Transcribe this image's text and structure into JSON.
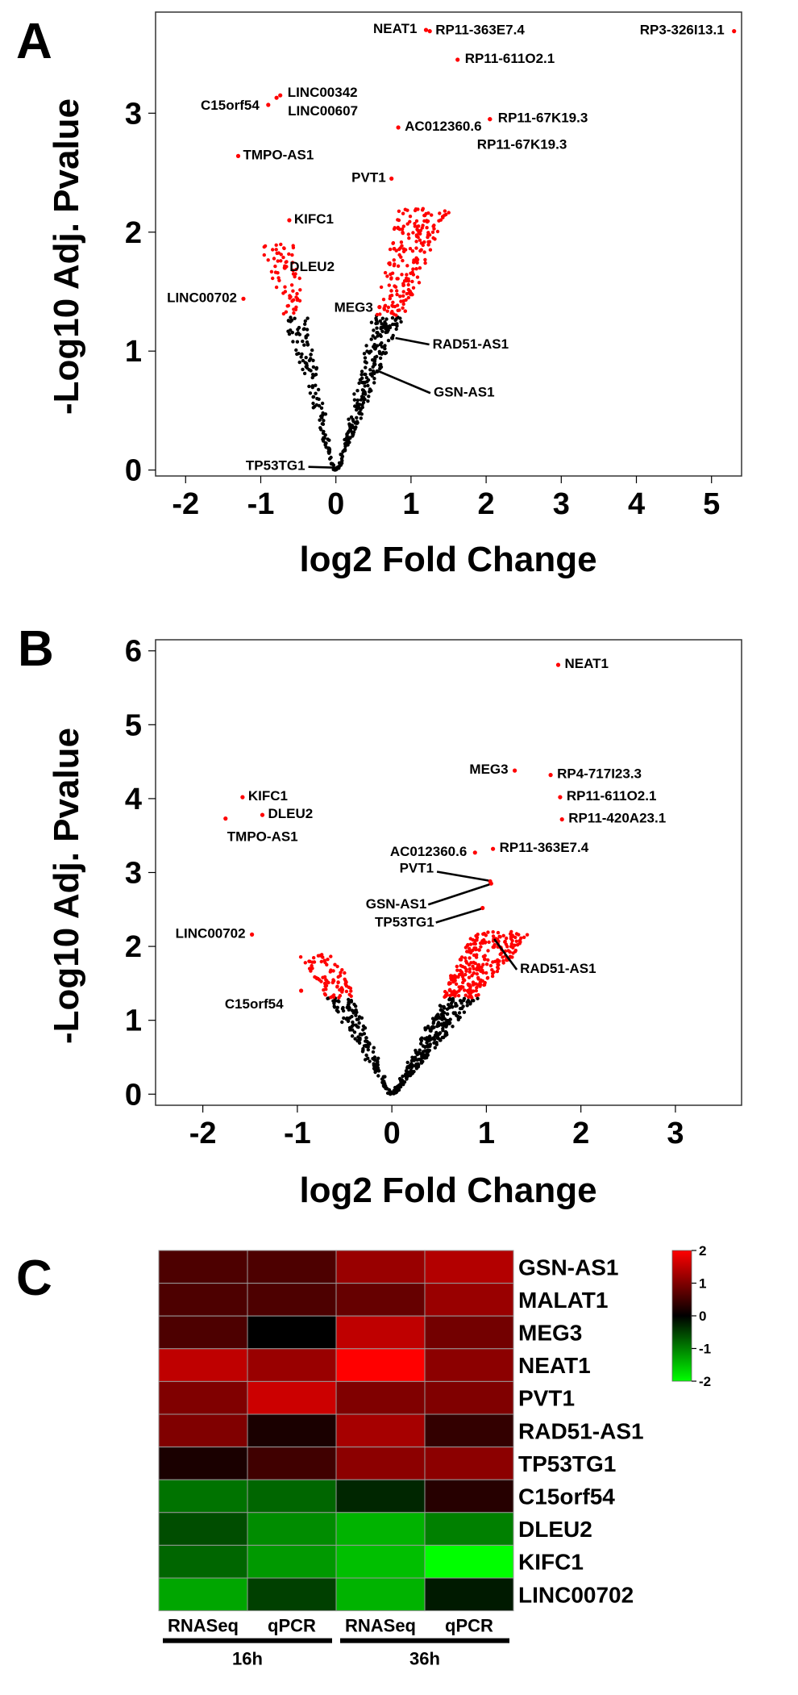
{
  "panels": [
    "A",
    "B",
    "C"
  ],
  "chart_data": [
    {
      "type": "scatter",
      "panel": "A",
      "xlabel": "log2 Fold Change",
      "ylabel": "-Log10 Adj. Pvalue",
      "xlim": [
        -2.4,
        5.4
      ],
      "ylim": [
        -0.05,
        3.85
      ],
      "xticks": [
        -2,
        -1,
        0,
        1,
        2,
        3,
        4,
        5
      ],
      "yticks": [
        0,
        1,
        2,
        3
      ],
      "significance_threshold": 1.3,
      "colors": {
        "significant": "#ff0000",
        "not_significant": "#000000"
      },
      "labeled_points": [
        {
          "label": "NEAT1",
          "x": 1.2,
          "y": 3.7
        },
        {
          "label": "RP11-363E7.4",
          "x": 1.25,
          "y": 3.69
        },
        {
          "label": "RP3-326I13.1",
          "x": 5.3,
          "y": 3.69
        },
        {
          "label": "RP11-611O2.1",
          "x": 1.62,
          "y": 3.45
        },
        {
          "label": "LINC00342",
          "x": -0.74,
          "y": 3.15
        },
        {
          "label": "C15orf54",
          "x": -0.9,
          "y": 3.07
        },
        {
          "label": "LINC00607",
          "x": -0.79,
          "y": 3.13
        },
        {
          "label": "RP11-67K19.3",
          "x": 2.05,
          "y": 2.95
        },
        {
          "label": "AC012360.6",
          "x": 0.83,
          "y": 2.88
        },
        {
          "label": "RP11-67K19.3",
          "x": 2.05,
          "y": 2.95
        },
        {
          "label": "TMPO-AS1",
          "x": -1.3,
          "y": 2.64
        },
        {
          "label": "PVT1",
          "x": 0.74,
          "y": 2.45
        },
        {
          "label": "KIFC1",
          "x": -0.62,
          "y": 2.1
        },
        {
          "label": "DLEU2",
          "x": -0.68,
          "y": 1.7
        },
        {
          "label": "LINC00702",
          "x": -1.23,
          "y": 1.44
        },
        {
          "label": "MEG3",
          "x": 0.58,
          "y": 1.37
        },
        {
          "label": "RAD51-AS1",
          "x": 0.75,
          "y": 1.11
        },
        {
          "label": "GSN-AS1",
          "x": 0.55,
          "y": 0.83
        },
        {
          "label": "TP53TG1",
          "x": 0.02,
          "y": 0.02
        }
      ]
    },
    {
      "type": "scatter",
      "panel": "B",
      "xlabel": "log2 Fold Change",
      "ylabel": "-Log10 Adj. Pvalue",
      "xlim": [
        -2.5,
        3.7
      ],
      "ylim": [
        -0.15,
        6.15
      ],
      "xticks": [
        -2,
        -1,
        0,
        1,
        2,
        3
      ],
      "yticks": [
        0,
        1,
        2,
        3,
        4,
        5,
        6
      ],
      "significance_threshold": 1.3,
      "colors": {
        "significant": "#ff0000",
        "not_significant": "#000000"
      },
      "labeled_points": [
        {
          "label": "NEAT1",
          "x": 1.76,
          "y": 5.81
        },
        {
          "label": "MEG3",
          "x": 1.3,
          "y": 4.38
        },
        {
          "label": "RP4-717I23.3",
          "x": 1.68,
          "y": 4.32
        },
        {
          "label": "RP11-611O2.1",
          "x": 1.78,
          "y": 4.02
        },
        {
          "label": "KIFC1",
          "x": -1.58,
          "y": 4.02
        },
        {
          "label": "DLEU2",
          "x": -1.37,
          "y": 3.78
        },
        {
          "label": "TMPO-AS1",
          "x": -1.76,
          "y": 3.73
        },
        {
          "label": "RP11-420A23.1",
          "x": 1.8,
          "y": 3.72
        },
        {
          "label": "AC012360.6",
          "x": 0.88,
          "y": 3.27
        },
        {
          "label": "RP11-363E7.4",
          "x": 1.07,
          "y": 3.32
        },
        {
          "label": "PVT1",
          "x": 1.04,
          "y": 2.88
        },
        {
          "label": "GSN-AS1",
          "x": 1.05,
          "y": 2.85
        },
        {
          "label": "TP53TG1",
          "x": 0.96,
          "y": 2.52
        },
        {
          "label": "LINC00702",
          "x": -1.48,
          "y": 2.16
        },
        {
          "label": "RAD51-AS1",
          "x": 1.1,
          "y": 2.1
        },
        {
          "label": "C15orf54",
          "x": -0.96,
          "y": 1.4
        }
      ]
    },
    {
      "type": "heatmap",
      "panel": "C",
      "rows": [
        "GSN-AS1",
        "MALAT1",
        "MEG3",
        "NEAT1",
        "PVT1",
        "RAD51-AS1",
        "TP53TG1",
        "C15orf54",
        "DLEU2",
        "KIFC1",
        "LINC00702"
      ],
      "columns": [
        "RNASeq",
        "qPCR",
        "RNASeq",
        "qPCR"
      ],
      "groups": [
        {
          "label": "16h",
          "columns": [
            0,
            1
          ]
        },
        {
          "label": "36h",
          "columns": [
            2,
            3
          ]
        }
      ],
      "values": [
        [
          0.6,
          0.6,
          1.2,
          1.4
        ],
        [
          0.6,
          0.6,
          0.8,
          1.2
        ],
        [
          0.6,
          0.0,
          1.5,
          0.9
        ],
        [
          1.5,
          1.2,
          2.0,
          1.1
        ],
        [
          1.0,
          1.6,
          1.0,
          1.0
        ],
        [
          1.0,
          0.2,
          1.3,
          0.4
        ],
        [
          0.2,
          0.5,
          1.1,
          1.1
        ],
        [
          -0.9,
          -0.8,
          -0.3,
          0.3
        ],
        [
          -0.6,
          -1.1,
          -1.4,
          -1.0
        ],
        [
          -0.8,
          -1.2,
          -1.5,
          -2.0
        ],
        [
          -1.3,
          -0.5,
          -1.4,
          -0.2
        ]
      ],
      "color_scale": {
        "min": -2,
        "max": 2,
        "ticks": [
          2,
          1,
          0,
          -1,
          -2
        ],
        "low_color": "#00ff00",
        "mid_color": "#000000",
        "high_color": "#ff0000"
      }
    }
  ]
}
